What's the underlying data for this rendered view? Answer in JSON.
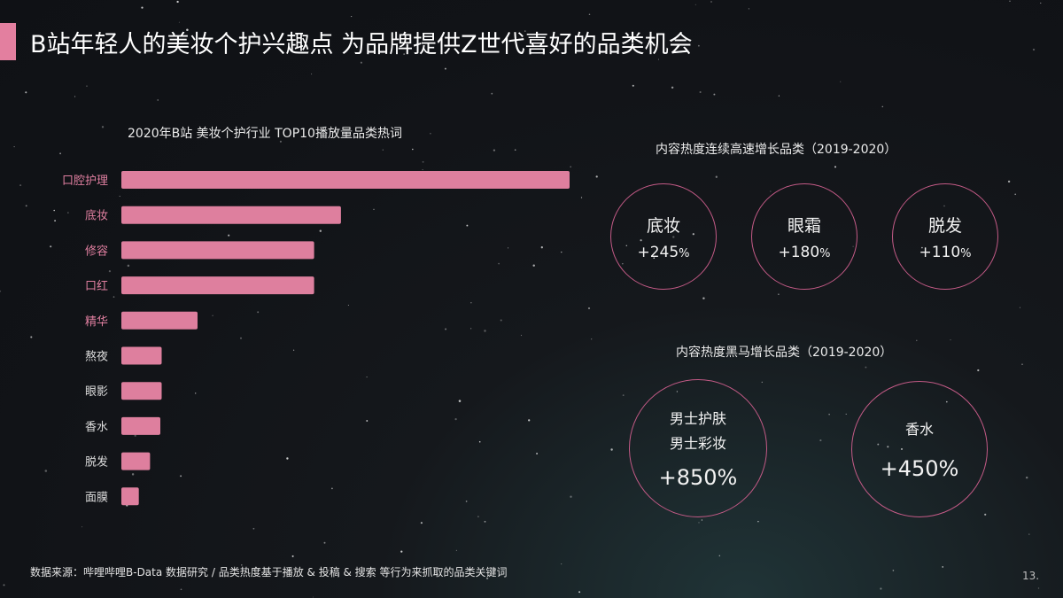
{
  "page": {
    "title": "B站年轻人的美妆个护兴趣点  为品牌提供Z世代喜好的品类机会",
    "source": "数据来源：哔哩哔哩B-Data 数据研究 / 品类热度基于播放 & 投稿 & 搜索 等行为来抓取的品类关键词",
    "page_number": "13."
  },
  "chart_data": {
    "type": "bar",
    "orientation": "horizontal",
    "title": "2020年B站 美妆个护行业 TOP10播放量品类热词",
    "categories": [
      "口腔护理",
      "底妆",
      "修容",
      "口红",
      "精华",
      "熬夜",
      "眼影",
      "香水",
      "脱发",
      "面膜"
    ],
    "values": [
      100,
      49,
      43,
      43,
      17,
      9,
      9,
      8.7,
      6.4,
      3.9
    ],
    "highlighted_count": 5,
    "colors": {
      "bar": "#de7f9e",
      "highlight_label": "#e07fa0",
      "label": "#dcdcdc"
    }
  },
  "growth": {
    "title": "内容热度连续高速增长品类（2019-2020）",
    "items": [
      {
        "name": "底妆",
        "value": "+245",
        "unit": "%"
      },
      {
        "name": "眼霜",
        "value": "+180",
        "unit": "%"
      },
      {
        "name": "脱发",
        "value": "+110",
        "unit": "%"
      }
    ]
  },
  "dark_horse": {
    "title": "内容热度黑马增长品类（2019-2020）",
    "items": [
      {
        "lines": [
          "男士护肤",
          "男士彩妆"
        ],
        "value": "+850%"
      },
      {
        "lines": [
          "香水"
        ],
        "value": "+450%"
      }
    ]
  },
  "colors": {
    "accent": "#e37f9f",
    "circle_border": "#c35a86"
  }
}
